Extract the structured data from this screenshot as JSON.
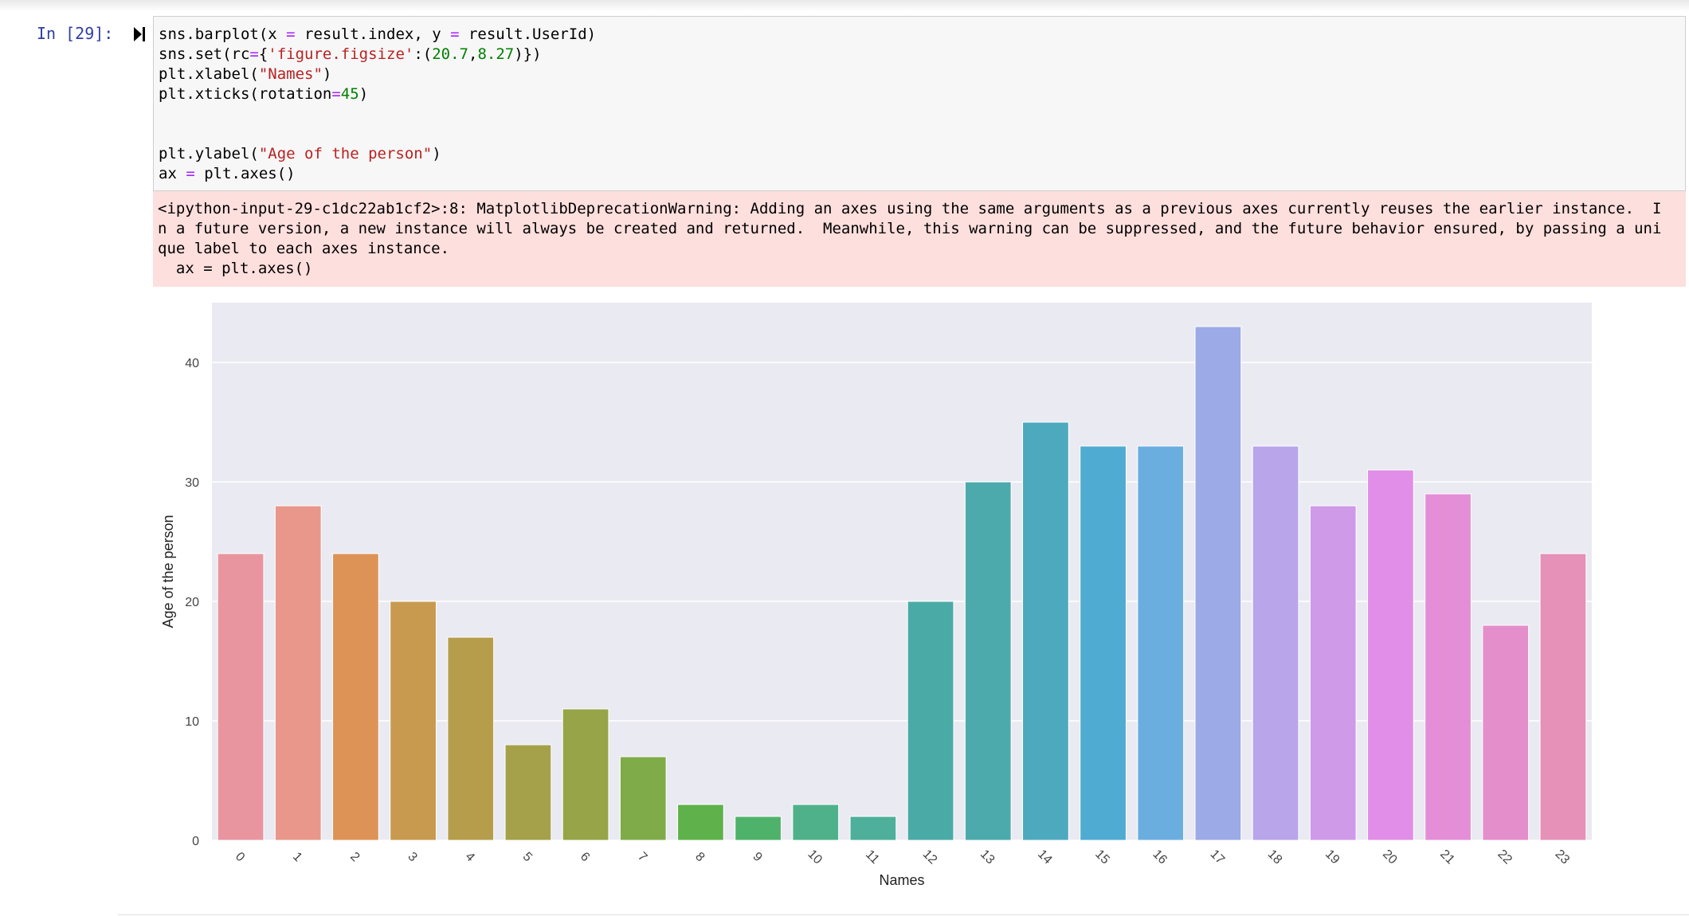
{
  "cell": {
    "prompt": "In [29]:",
    "code_lines": [
      [
        {
          "t": "sns.barplot(x "
        },
        {
          "t": "=",
          "c": "op"
        },
        {
          "t": " result.index, y "
        },
        {
          "t": "=",
          "c": "op"
        },
        {
          "t": " result.UserId)"
        }
      ],
      [
        {
          "t": "sns.set(rc"
        },
        {
          "t": "=",
          "c": "op"
        },
        {
          "t": "{"
        },
        {
          "t": "'figure.figsize'",
          "c": "str"
        },
        {
          "t": ":("
        },
        {
          "t": "20.7",
          "c": "num"
        },
        {
          "t": ","
        },
        {
          "t": "8.27",
          "c": "num"
        },
        {
          "t": ")})"
        }
      ],
      [
        {
          "t": "plt.xlabel("
        },
        {
          "t": "\"Names\"",
          "c": "str"
        },
        {
          "t": ")"
        }
      ],
      [
        {
          "t": "plt.xticks(rotation"
        },
        {
          "t": "=",
          "c": "op"
        },
        {
          "t": "45",
          "c": "num"
        },
        {
          "t": ")"
        }
      ],
      [],
      [],
      [
        {
          "t": "plt.ylabel("
        },
        {
          "t": "\"Age of the person\"",
          "c": "str"
        },
        {
          "t": ")"
        }
      ],
      [
        {
          "t": "ax "
        },
        {
          "t": "=",
          "c": "op"
        },
        {
          "t": " plt.axes()"
        }
      ]
    ],
    "stderr_lines": [
      "<ipython-input-29-c1dc22ab1cf2>:8: MatplotlibDeprecationWarning: Adding an axes using the same arguments as a previous axes currently reuses the earlier instance.  I",
      "n a future version, a new instance will always be created and returned.  Meanwhile, this warning can be suppressed, and the future behavior ensured, by passing a uni",
      "que label to each axes instance.",
      "  ax = plt.axes()"
    ]
  },
  "chart_data": {
    "type": "bar",
    "categories": [
      "0",
      "1",
      "2",
      "3",
      "4",
      "5",
      "6",
      "7",
      "8",
      "9",
      "10",
      "11",
      "12",
      "13",
      "14",
      "15",
      "16",
      "17",
      "18",
      "19",
      "20",
      "21",
      "22",
      "23"
    ],
    "values": [
      24,
      28,
      24,
      20,
      17,
      8,
      11,
      7,
      3,
      2,
      3,
      2,
      20,
      30,
      35,
      33,
      33,
      43,
      33,
      28,
      31,
      29,
      18,
      24
    ],
    "colors": [
      "#e8959f",
      "#e8978a",
      "#de9356",
      "#c89a4f",
      "#b69d4b",
      "#a5a14a",
      "#97a448",
      "#7fab48",
      "#5fb24b",
      "#4fb26b",
      "#4fb18a",
      "#4eaf9a",
      "#4aaaa6",
      "#4caaad",
      "#4da9bd",
      "#50abd2",
      "#6aaee0",
      "#9caae7",
      "#b8a5ea",
      "#cf9ae8",
      "#e08ee7",
      "#e48ed7",
      "#e48fcb",
      "#e591b8"
    ],
    "title": "",
    "xlabel": "Names",
    "ylabel": "Age of the person",
    "ylim": [
      0,
      45
    ],
    "yticks": [
      0,
      10,
      20,
      30,
      40
    ],
    "xtick_rotation": 45,
    "grid": true,
    "background": "#eaeaf2"
  },
  "theme": {
    "prompt_color": "#303f9f",
    "code_bg": "#f7f7f7",
    "stderr_bg": "#fddfdd"
  }
}
